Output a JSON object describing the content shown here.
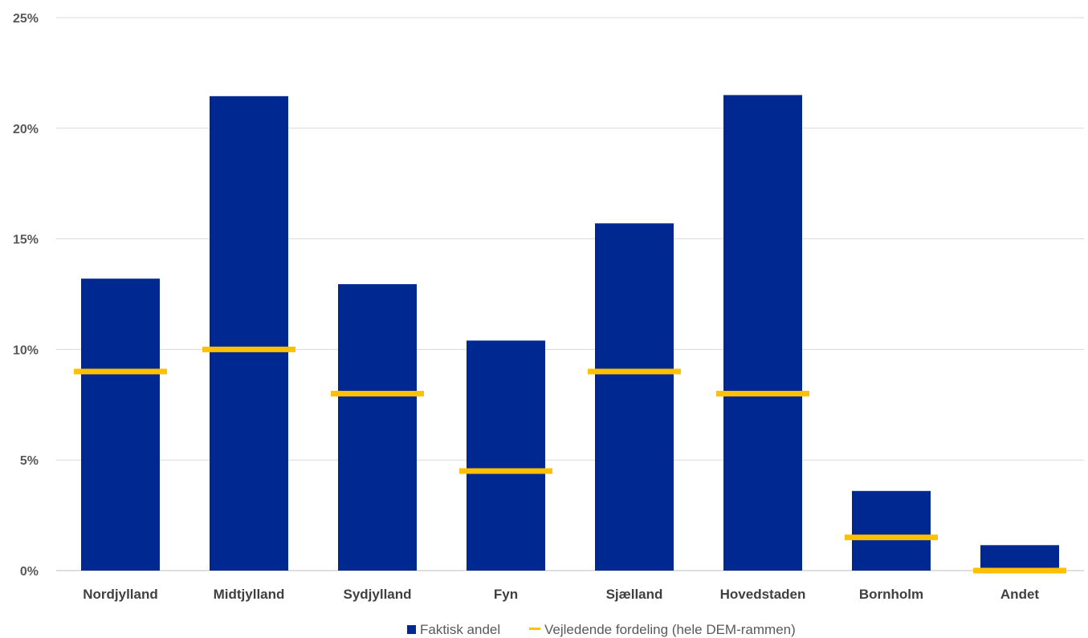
{
  "chart_data": {
    "type": "bar",
    "categories": [
      "Nordjylland",
      "Midtjylland",
      "Sydjylland",
      "Fyn",
      "Sjælland",
      "Hovedstaden",
      "Bornholm",
      "Andet"
    ],
    "series": [
      {
        "name": "Faktisk andel",
        "kind": "bar",
        "color": "#002891",
        "values": [
          13.2,
          21.45,
          12.95,
          10.4,
          15.7,
          21.5,
          3.6,
          1.15
        ]
      },
      {
        "name": "Vejledende fordeling (hele DEM-rammen)",
        "kind": "marker-line",
        "color": "#FFC000",
        "values": [
          9.0,
          10.0,
          8.0,
          4.5,
          9.0,
          8.0,
          1.5,
          0.0
        ]
      }
    ],
    "ylim": [
      0,
      25
    ],
    "yticks": [
      "0%",
      "5%",
      "10%",
      "15%",
      "20%",
      "25%"
    ],
    "ytick_values": [
      0,
      5,
      10,
      15,
      20,
      25
    ],
    "grid": true,
    "legend_position": "bottom"
  }
}
